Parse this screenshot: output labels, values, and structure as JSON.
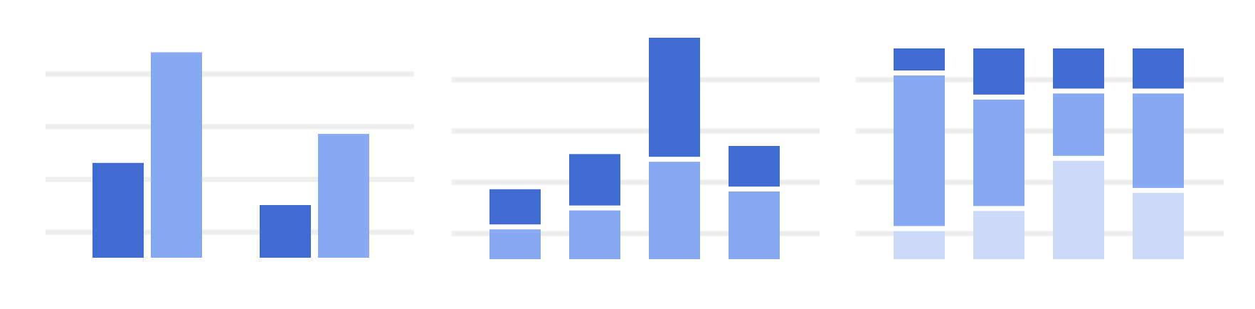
{
  "colors": {
    "dark": "#3f6bd3",
    "mid": "#86a9f1",
    "light": "#cbdaf8",
    "grid": "#eeeeee",
    "background": "#ffffff"
  },
  "chart_data": [
    {
      "type": "bar",
      "mode": "grouped",
      "title": "",
      "xlabel": "",
      "ylabel": "",
      "categories": [
        "",
        ""
      ],
      "ylim": [
        0,
        4
      ],
      "grid": true,
      "series": [
        {
          "color": "dark",
          "values": [
            1.8,
            1.0
          ]
        },
        {
          "color": "mid",
          "values": [
            3.9,
            2.35
          ]
        }
      ]
    },
    {
      "type": "bar",
      "mode": "stacked",
      "title": "",
      "xlabel": "",
      "ylabel": "",
      "categories": [
        "",
        "",
        "",
        ""
      ],
      "ylim": [
        0,
        4
      ],
      "grid": true,
      "series": [
        {
          "color": "mid",
          "values": [
            0.55,
            0.9,
            1.8,
            1.25
          ]
        },
        {
          "color": "dark",
          "values": [
            0.65,
            0.95,
            2.2,
            0.75
          ]
        }
      ]
    },
    {
      "type": "bar",
      "mode": "stacked-percent",
      "title": "",
      "xlabel": "",
      "ylabel": "",
      "categories": [
        "",
        "",
        "",
        ""
      ],
      "ylim": [
        0,
        100
      ],
      "grid": true,
      "series": [
        {
          "color": "light",
          "values": [
            14,
            24,
            49,
            33
          ]
        },
        {
          "color": "mid",
          "values": [
            75,
            53,
            31,
            47
          ]
        },
        {
          "color": "dark",
          "values": [
            11,
            23,
            20,
            20
          ]
        }
      ]
    }
  ]
}
